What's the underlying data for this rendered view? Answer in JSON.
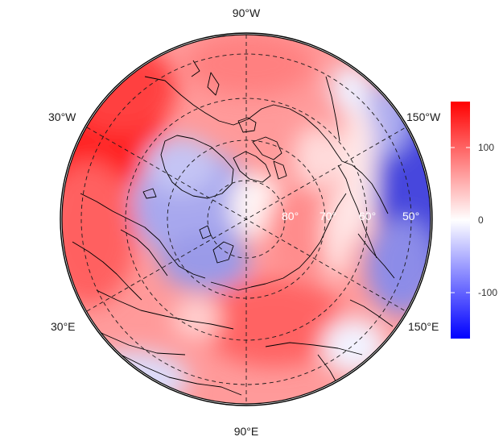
{
  "map": {
    "projection": "north-polar-stereographic",
    "longitude_labels": {
      "top": "90°W",
      "bottom": "90°E",
      "upper_left": "30°W",
      "upper_right": "150°W",
      "lower_left": "30°E",
      "lower_right": "150°E"
    },
    "latitude_labels": [
      "80°",
      "70°",
      "60°",
      "50°"
    ],
    "graticule": "dashed",
    "field_colors": {
      "positive": "#ff0000",
      "neutral": "#ffffff",
      "negative": "#0000ff"
    }
  },
  "colorbar": {
    "ticks": [
      "100",
      "0",
      "-100"
    ],
    "tick_values": [
      100,
      0,
      -100
    ],
    "range": [
      -165,
      165
    ],
    "low_color": "#0000ff",
    "mid_color": "#ffffff",
    "high_color": "#ff0000"
  }
}
